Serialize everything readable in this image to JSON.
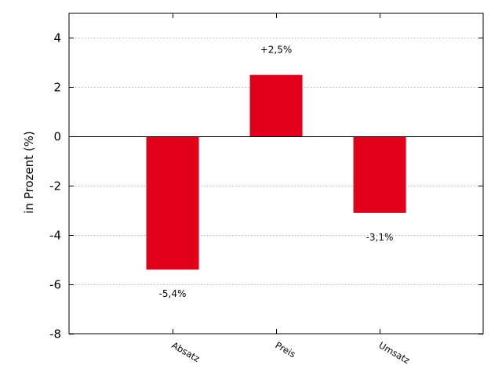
{
  "chart_data": {
    "type": "bar",
    "categories": [
      "Absatz",
      "Preis",
      "Umsatz"
    ],
    "values": [
      -5.4,
      2.5,
      -3.1
    ],
    "data_labels": [
      "-5,4%",
      "+2,5%",
      "-3,1%"
    ],
    "ylabel": "in Prozent (%)",
    "xlabel": "",
    "title": "",
    "ylim": [
      -8,
      5
    ],
    "yticks": [
      4,
      2,
      0,
      -2,
      -4,
      -6,
      -8
    ],
    "ytick_labels": [
      "4",
      "2",
      "0",
      "-2",
      "-4",
      "-6",
      "-8"
    ],
    "grid": "horizontal, dotted",
    "bar_color": "#e2001a",
    "zero_line_color": "#000000",
    "grid_color": "#b0b0b0"
  }
}
